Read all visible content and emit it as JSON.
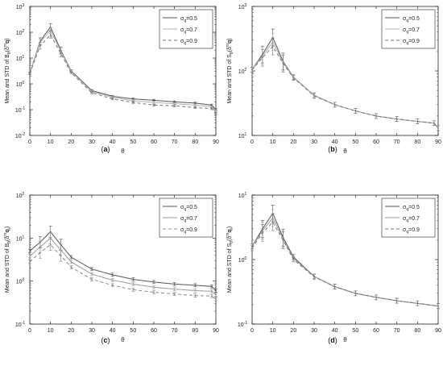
{
  "chart_data": [
    {
      "type": "line",
      "panel_label": "(a)",
      "ylabel": "Mean and STD of B_θ(δ^m q)",
      "ylabel_parts": {
        "prefix": "Mean and STD of B",
        "sub": "θ",
        "open": "(δ",
        "sup": "m",
        "bold": "q",
        "close": ")"
      },
      "xlabel": "θ",
      "xlim": [
        0,
        90
      ],
      "ylim": [
        0.01,
        1000
      ],
      "yscale": "log",
      "xticks": [
        "0",
        "10",
        "20",
        "30",
        "40",
        "50",
        "60",
        "70",
        "80",
        "90"
      ],
      "yticks": [
        {
          "value": 0.01,
          "base": "10",
          "exp": "-2"
        },
        {
          "value": 0.1,
          "base": "10",
          "exp": "-1"
        },
        {
          "value": 1,
          "base": "10",
          "exp": "0"
        },
        {
          "value": 10,
          "base": "10",
          "exp": "1"
        },
        {
          "value": 100,
          "base": "10",
          "exp": "2"
        },
        {
          "value": 1000,
          "base": "10",
          "exp": "3"
        }
      ],
      "legend_position": "top-right",
      "x": [
        0,
        5,
        10,
        15,
        20,
        30,
        40,
        50,
        60,
        70,
        80,
        88,
        90
      ],
      "series": [
        {
          "name": "σq=0.5",
          "name_base": "σ",
          "name_sub": "q",
          "name_value": "=0.5",
          "color": "#555555",
          "dash": "",
          "values": [
            2.6,
            45,
            160,
            20,
            3.2,
            0.55,
            0.33,
            0.26,
            0.23,
            0.2,
            0.18,
            0.15,
            0.1
          ]
        },
        {
          "name": "σq=0.7",
          "name_base": "σ",
          "name_sub": "q",
          "name_value": "=0.7",
          "color": "#b0b0b0",
          "dash": "",
          "values": [
            2.6,
            40,
            120,
            18,
            3.0,
            0.5,
            0.3,
            0.22,
            0.19,
            0.17,
            0.15,
            0.13,
            0.09
          ]
        },
        {
          "name": "σq=0.9",
          "name_base": "σ",
          "name_sub": "q",
          "name_value": "=0.9",
          "color": "#777777",
          "dash": "4,3",
          "values": [
            2.5,
            30,
            80,
            15,
            2.7,
            0.45,
            0.26,
            0.19,
            0.15,
            0.14,
            0.12,
            0.11,
            0.07
          ]
        }
      ]
    },
    {
      "type": "line",
      "panel_label": "(b)",
      "ylabel": "Mean and STD of S_θ(δ^m q)",
      "ylabel_parts": {
        "prefix": "Mean and STD of S",
        "sub": "θ",
        "open": "(δ",
        "sup": "m",
        "bold": "q",
        "close": ")"
      },
      "xlabel": "θ",
      "xlim": [
        0,
        90
      ],
      "ylim": [
        10,
        1000
      ],
      "yscale": "log",
      "xticks": [
        "0",
        "10",
        "20",
        "30",
        "40",
        "50",
        "60",
        "70",
        "80",
        "90"
      ],
      "yticks": [
        {
          "value": 10,
          "base": "10",
          "exp": "1"
        },
        {
          "value": 100,
          "base": "10",
          "exp": "2"
        },
        {
          "value": 1000,
          "base": "10",
          "exp": "3"
        }
      ],
      "legend_position": "top-right",
      "x": [
        0,
        5,
        10,
        15,
        20,
        30,
        40,
        50,
        60,
        70,
        80,
        88,
        90
      ],
      "series": [
        {
          "name": "σq=0.5",
          "name_base": "σ",
          "name_sub": "q",
          "name_value": "=0.5",
          "color": "#555555",
          "dash": "",
          "values": [
            105,
            180,
            330,
            140,
            80,
            42,
            30,
            24,
            20,
            18,
            16.5,
            15.5,
            13
          ]
        },
        {
          "name": "σq=0.7",
          "name_base": "σ",
          "name_sub": "q",
          "name_value": "=0.7",
          "color": "#b0b0b0",
          "dash": "",
          "values": [
            105,
            170,
            280,
            135,
            79,
            42,
            30,
            24,
            20,
            18,
            16.5,
            15.5,
            13
          ]
        },
        {
          "name": "σq=0.9",
          "name_base": "σ",
          "name_sub": "q",
          "name_value": "=0.9",
          "color": "#777777",
          "dash": "4,3",
          "values": [
            104,
            160,
            240,
            130,
            78,
            41,
            30,
            24,
            20,
            18,
            16.5,
            15.5,
            13
          ]
        }
      ]
    },
    {
      "type": "line",
      "panel_label": "(c)",
      "ylabel": "Mean and STD of B_θ(δ^m q_i)",
      "ylabel_parts": {
        "prefix": "Mean and STD of B",
        "sub": "θ",
        "open": "(δ",
        "sup": "m",
        "bold": "q",
        "bold_sub": "i",
        "close": ")"
      },
      "xlabel": "θ",
      "xlim": [
        0,
        90
      ],
      "ylim": [
        0.1,
        100
      ],
      "yscale": "log",
      "xticks": [
        "0",
        "10",
        "20",
        "30",
        "40",
        "50",
        "60",
        "70",
        "80",
        "90"
      ],
      "yticks": [
        {
          "value": 0.1,
          "base": "10",
          "exp": "-1"
        },
        {
          "value": 1,
          "base": "10",
          "exp": "0"
        },
        {
          "value": 10,
          "base": "10",
          "exp": "1"
        },
        {
          "value": 100,
          "base": "10",
          "exp": "2"
        }
      ],
      "legend_position": "top-right",
      "x": [
        0,
        5,
        10,
        15,
        20,
        30,
        40,
        50,
        60,
        70,
        80,
        88,
        90
      ],
      "series": [
        {
          "name": "σq=0.5",
          "name_base": "σ",
          "name_sub": "q",
          "name_value": "=0.5",
          "color": "#555555",
          "dash": "",
          "values": [
            5,
            8,
            14,
            7,
            3.6,
            1.9,
            1.4,
            1.1,
            0.95,
            0.85,
            0.8,
            0.75,
            0.6
          ]
        },
        {
          "name": "σq=0.7",
          "name_base": "σ",
          "name_sub": "q",
          "name_value": "=0.7",
          "color": "#999999",
          "dash": "",
          "values": [
            3.8,
            6.2,
            10,
            5.3,
            2.8,
            1.45,
            1.05,
            0.85,
            0.72,
            0.65,
            0.6,
            0.58,
            0.48
          ]
        },
        {
          "name": "σq=0.9",
          "name_base": "σ",
          "name_sub": "q",
          "name_value": "=0.9",
          "color": "#888888",
          "dash": "4,3",
          "values": [
            2.8,
            4.6,
            7,
            3.9,
            2.1,
            1.1,
            0.8,
            0.63,
            0.55,
            0.5,
            0.46,
            0.45,
            0.38
          ]
        }
      ]
    },
    {
      "type": "line",
      "panel_label": "(d)",
      "ylabel": "Mean and STD of S_θ(δ^m q_i)",
      "ylabel_parts": {
        "prefix": "Mean and STD of S",
        "sub": "θ",
        "open": "(δ",
        "sup": "m",
        "bold": "q",
        "bold_sub": "i",
        "close": ")"
      },
      "xlabel": "θ",
      "xlim": [
        0,
        90
      ],
      "ylim": [
        0.1,
        10
      ],
      "yscale": "log",
      "xticks": [
        "0",
        "10",
        "20",
        "30",
        "40",
        "50",
        "60",
        "70",
        "80",
        "90"
      ],
      "yticks": [
        {
          "value": 0.1,
          "base": "10",
          "exp": "-1"
        },
        {
          "value": 1,
          "base": "10",
          "exp": "0"
        },
        {
          "value": 10,
          "base": "10",
          "exp": "1"
        }
      ],
      "legend_position": "top-right",
      "x": [
        0,
        5,
        10,
        15,
        20,
        30,
        40,
        50,
        60,
        70,
        80,
        90
      ],
      "series": [
        {
          "name": "σq=0.5",
          "name_base": "σ",
          "name_sub": "q",
          "name_value": "=0.5",
          "color": "#555555",
          "dash": "",
          "values": [
            1.6,
            3.0,
            5.2,
            2.2,
            1.1,
            0.55,
            0.38,
            0.3,
            0.26,
            0.23,
            0.21,
            0.19
          ]
        },
        {
          "name": "σq=0.7",
          "name_base": "σ",
          "name_sub": "q",
          "name_value": "=0.7",
          "color": "#999999",
          "dash": "",
          "values": [
            1.6,
            2.8,
            4.4,
            2.1,
            1.05,
            0.55,
            0.38,
            0.3,
            0.26,
            0.23,
            0.21,
            0.19
          ]
        },
        {
          "name": "σq=0.9",
          "name_base": "σ",
          "name_sub": "q",
          "name_value": "=0.9",
          "color": "#777777",
          "dash": "4,3",
          "values": [
            1.5,
            2.6,
            3.8,
            2.0,
            1.0,
            0.54,
            0.38,
            0.3,
            0.26,
            0.23,
            0.21,
            0.19
          ]
        }
      ]
    }
  ]
}
